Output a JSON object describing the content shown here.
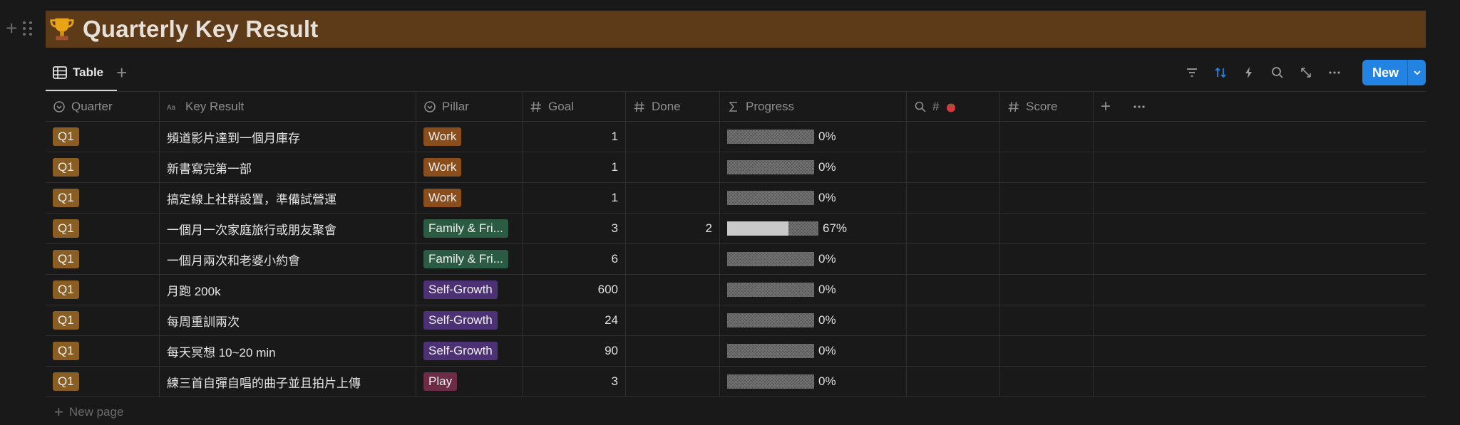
{
  "page": {
    "title": "Quarterly Key Result",
    "icon": "trophy-icon"
  },
  "toolbar": {
    "view_label": "Table",
    "new_label": "New",
    "accent": "#2383e2"
  },
  "columns": {
    "quarter": "Quarter",
    "key_result": "Key Result",
    "pillar": "Pillar",
    "goal": "Goal",
    "done": "Done",
    "progress": "Progress",
    "tomato_prefix": "#",
    "score": "Score"
  },
  "rows": [
    {
      "quarter": "Q1",
      "key_result": "頻道影片達到一個月庫存",
      "pillar": "Work",
      "goal": "1",
      "done": "",
      "progress": 0,
      "progress_label": "0%"
    },
    {
      "quarter": "Q1",
      "key_result": "新書寫完第一部",
      "pillar": "Work",
      "goal": "1",
      "done": "",
      "progress": 0,
      "progress_label": "0%"
    },
    {
      "quarter": "Q1",
      "key_result": "搞定線上社群設置，準備試營運",
      "pillar": "Work",
      "goal": "1",
      "done": "",
      "progress": 0,
      "progress_label": "0%"
    },
    {
      "quarter": "Q1",
      "key_result": "一個月一次家庭旅行或朋友聚會",
      "pillar": "Family & Fri...",
      "goal": "3",
      "done": "2",
      "progress": 0.67,
      "progress_label": "67%"
    },
    {
      "quarter": "Q1",
      "key_result": "一個月兩次和老婆小約會",
      "pillar": "Family & Fri...",
      "goal": "6",
      "done": "",
      "progress": 0,
      "progress_label": "0%"
    },
    {
      "quarter": "Q1",
      "key_result": "月跑 200k",
      "pillar": "Self-Growth",
      "goal": "600",
      "done": "",
      "progress": 0,
      "progress_label": "0%"
    },
    {
      "quarter": "Q1",
      "key_result": "每周重訓兩次",
      "pillar": "Self-Growth",
      "goal": "24",
      "done": "",
      "progress": 0,
      "progress_label": "0%"
    },
    {
      "quarter": "Q1",
      "key_result": "每天冥想 10~20 min",
      "pillar": "Self-Growth",
      "goal": "90",
      "done": "",
      "progress": 0,
      "progress_label": "0%"
    },
    {
      "quarter": "Q1",
      "key_result": "練三首自彈自唱的曲子並且拍片上傳",
      "pillar": "Play",
      "goal": "3",
      "done": "",
      "progress": 0,
      "progress_label": "0%"
    }
  ],
  "footer": {
    "new_page_label": "New page"
  }
}
